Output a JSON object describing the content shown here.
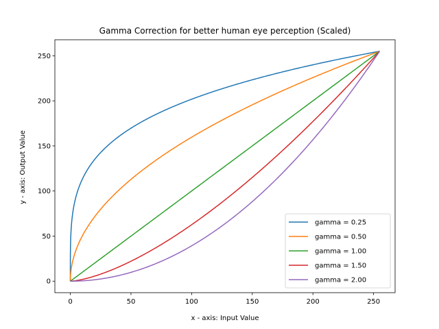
{
  "chart_data": {
    "type": "line",
    "title": "Gamma Correction for better human eye perception (Scaled)",
    "xlabel": "x - axis: Input Value",
    "ylabel": "y - axis: Output Value",
    "xlim": [
      -12.75,
      267.75
    ],
    "ylim": [
      -12.75,
      267.75
    ],
    "xticks": [
      0,
      50,
      100,
      150,
      200,
      250
    ],
    "yticks": [
      0,
      50,
      100,
      150,
      200,
      250
    ],
    "x_range": [
      0,
      255
    ],
    "grid": false,
    "legend_position": "lower-right",
    "series": [
      {
        "name": "gamma = 0.25",
        "gamma": 0.25,
        "color": "#1f77b4"
      },
      {
        "name": "gamma = 0.50",
        "gamma": 0.5,
        "color": "#ff7f0e"
      },
      {
        "name": "gamma = 1.00",
        "gamma": 1.0,
        "color": "#2ca02c"
      },
      {
        "name": "gamma = 1.50",
        "gamma": 1.5,
        "color": "#d62728"
      },
      {
        "name": "gamma = 2.00",
        "gamma": 2.0,
        "color": "#9467bd"
      }
    ]
  }
}
